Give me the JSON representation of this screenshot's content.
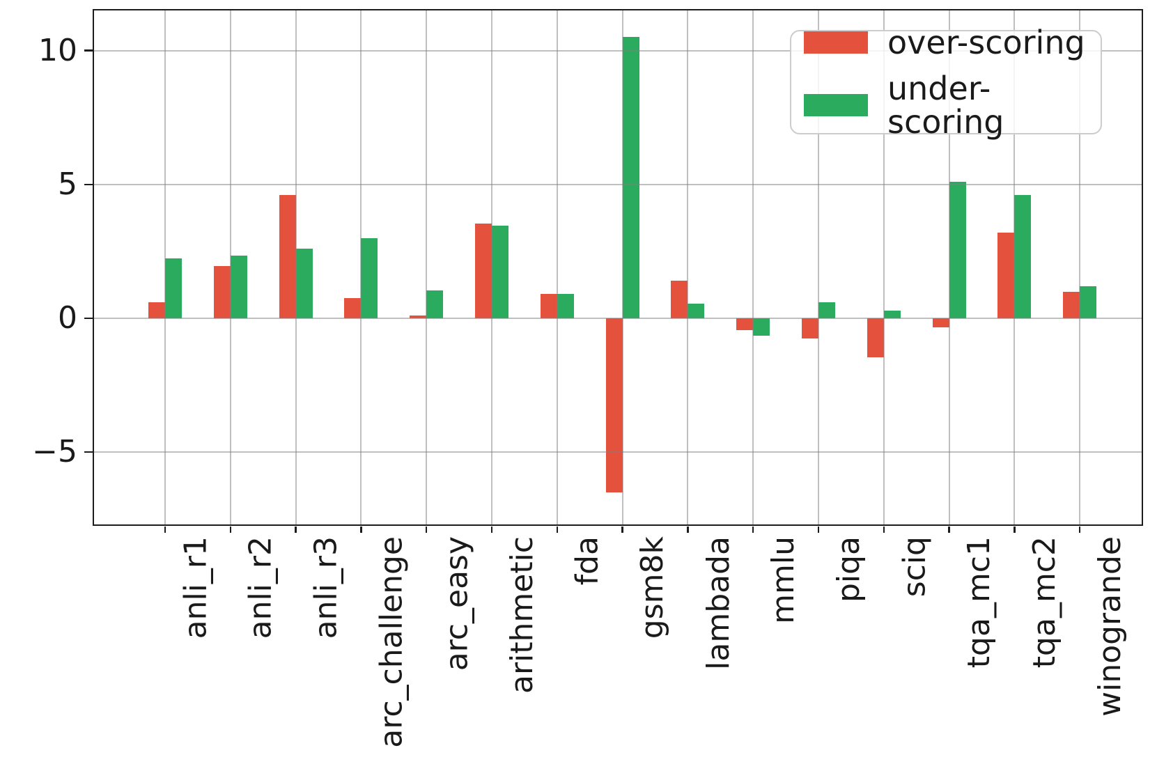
{
  "chart_data": {
    "type": "bar",
    "title": "",
    "xlabel": "",
    "ylabel": "",
    "categories": [
      "anli_r1",
      "anli_r2",
      "anli_r3",
      "arc_challenge",
      "arc_easy",
      "arithmetic",
      "fda",
      "gsm8k",
      "lambada",
      "mmlu",
      "piqa",
      "sciq",
      "tqa_mc1",
      "tqa_mc2",
      "winogrande"
    ],
    "series": [
      {
        "name": "over-scoring",
        "color": "#e4513d",
        "values": [
          0.6,
          1.95,
          4.6,
          0.75,
          0.1,
          3.55,
          0.9,
          -6.5,
          1.4,
          -0.45,
          -0.75,
          -1.45,
          -0.35,
          3.2,
          1.0
        ]
      },
      {
        "name": "under-scoring",
        "color": "#2bab5e",
        "values": [
          2.25,
          2.35,
          2.6,
          3.0,
          1.05,
          3.45,
          0.9,
          10.5,
          0.55,
          -0.65,
          0.6,
          0.3,
          5.1,
          4.6,
          1.2
        ]
      }
    ],
    "ylim": [
      -7.7,
      11.5
    ],
    "yticks": [
      {
        "value": 10,
        "label": "10"
      },
      {
        "value": 5,
        "label": "5"
      },
      {
        "value": 0,
        "label": "0"
      },
      {
        "value": -5,
        "label": "−5"
      }
    ],
    "grid": true,
    "grid_color": "#b0b0b0",
    "spine_color": "#1c1c1c",
    "legend": {
      "position": "upper right",
      "entries": [
        "over-scoring",
        "under-scoring"
      ]
    }
  }
}
